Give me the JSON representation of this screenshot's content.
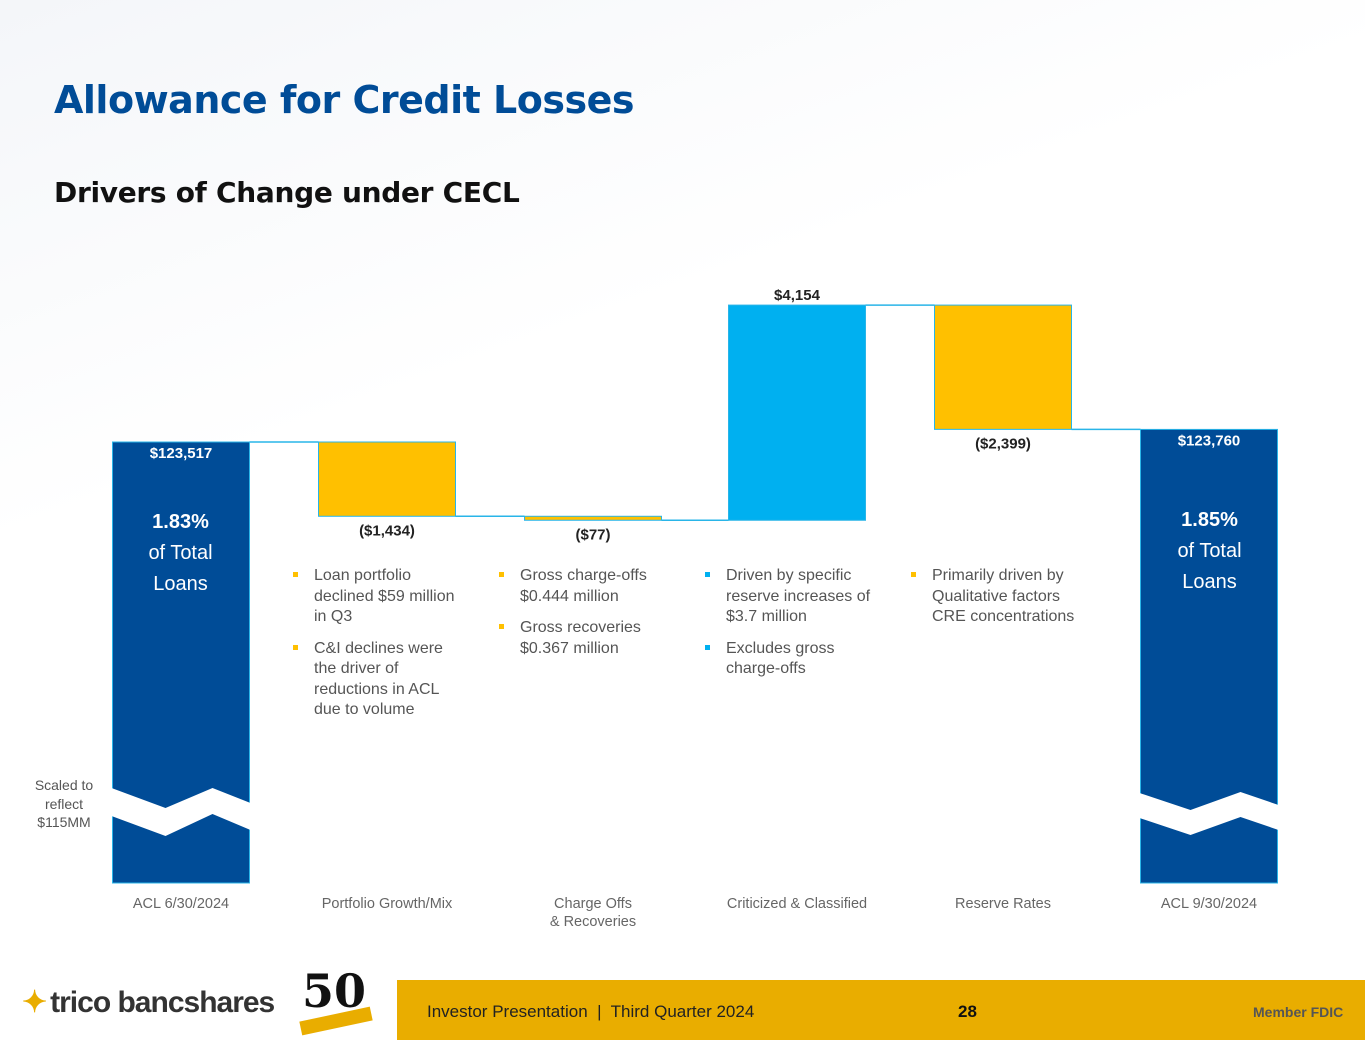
{
  "header": {
    "title": "Allowance for Credit Losses",
    "subtitle": "Drivers of Change under CECL"
  },
  "chart_data": {
    "type": "waterfall",
    "categories": [
      "ACL 6/30/2024",
      "Portfolio Growth/Mix",
      "Charge Offs\n& Recoveries",
      "Criticized & Classified",
      "Reserve Rates",
      "ACL 9/30/2024"
    ],
    "values": [
      123517,
      -1434,
      -77,
      4154,
      -2399,
      123760
    ],
    "kinds": [
      "total",
      "delta",
      "delta",
      "delta",
      "delta",
      "total"
    ],
    "data_labels": [
      "$123,517",
      "($1,434)",
      "($77)",
      "$4,154",
      "($2,399)",
      "$123,760"
    ],
    "total_pct_labels": [
      {
        "value": "1.83%",
        "text": "of Total Loans"
      },
      {
        "value": "1.85%",
        "text": "of Total Loans"
      }
    ],
    "axis_break_note": "Scaled to reflect $115MM",
    "colors": {
      "total": "#004c97",
      "decrease": "#ffc000",
      "increase": "#00b0f0",
      "connector": "#29b5e8"
    }
  },
  "notes": [
    {
      "color": "#ffc000",
      "items": [
        "Loan portfolio declined $59 million in Q3",
        "C&I declines were the driver of reductions in ACL due to volume"
      ]
    },
    {
      "color": "#ffc000",
      "items": [
        "Gross charge-offs $0.444 million",
        "Gross recoveries $0.367 million"
      ]
    },
    {
      "color": "#00b0f0",
      "items": [
        "Driven by specific reserve increases of $3.7 million",
        "Excludes gross charge-offs"
      ]
    },
    {
      "color": "#ffc000",
      "items": [
        "Primarily driven by Qualitative factors CRE concentrations"
      ]
    }
  ],
  "footer": {
    "logo": "trico bancshares",
    "anniversary": "50",
    "presentation": "Investor Presentation  |  Third Quarter 2024",
    "page": "28",
    "fdic": "Member FDIC"
  }
}
